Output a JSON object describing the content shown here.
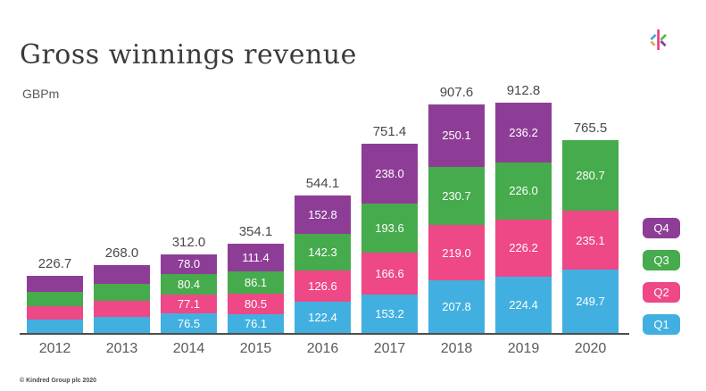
{
  "slide": {
    "title": "Gross winnings revenue",
    "unit_label": "GBPm",
    "copyright": "© Kindred Group plc 2020"
  },
  "logo": {
    "name": "kindred-logo",
    "colors": {
      "blue": "#41aade",
      "orange": "#f5a04c",
      "pink": "#ee3d7f",
      "green": "#56b948",
      "purple": "#7e3f98"
    }
  },
  "chart_data": {
    "type": "stacked-bar",
    "title": "Gross winnings revenue",
    "ylabel": "GBPm",
    "grid": false,
    "legend_position": "right",
    "categories": [
      "2012",
      "2013",
      "2014",
      "2015",
      "2016",
      "2017",
      "2018",
      "2019",
      "2020"
    ],
    "totals": [
      226.7,
      268.0,
      312.0,
      354.1,
      544.1,
      751.4,
      907.6,
      912.8,
      765.5
    ],
    "series": [
      {
        "name": "Q4",
        "color": "#8e3d97",
        "values": [
          62.7,
          73.0,
          78.0,
          111.4,
          152.8,
          238.0,
          250.1,
          236.2,
          0
        ],
        "labels": [
          "",
          "",
          "78.0",
          "111.4",
          "152.8",
          "238.0",
          "250.1",
          "236.2",
          ""
        ]
      },
      {
        "name": "Q3",
        "color": "#46ab4c",
        "values": [
          56.0,
          66.0,
          80.4,
          86.1,
          142.3,
          193.6,
          230.7,
          226.0,
          280.7
        ],
        "labels": [
          "",
          "",
          "80.4",
          "86.1",
          "142.3",
          "193.6",
          "230.7",
          "226.0",
          "280.7"
        ]
      },
      {
        "name": "Q2",
        "color": "#ee4886",
        "values": [
          56.0,
          66.0,
          77.1,
          80.5,
          126.6,
          166.6,
          219.0,
          226.2,
          235.1
        ],
        "labels": [
          "",
          "",
          "77.1",
          "80.5",
          "126.6",
          "166.6",
          "219.0",
          "226.2",
          "235.1"
        ]
      },
      {
        "name": "Q1",
        "color": "#41b0e0",
        "values": [
          52.0,
          63.0,
          76.5,
          76.1,
          122.4,
          153.2,
          207.8,
          224.4,
          249.7
        ],
        "labels": [
          "",
          "",
          "76.5",
          "76.1",
          "122.4",
          "153.2",
          "207.8",
          "224.4",
          "249.7"
        ]
      }
    ]
  }
}
